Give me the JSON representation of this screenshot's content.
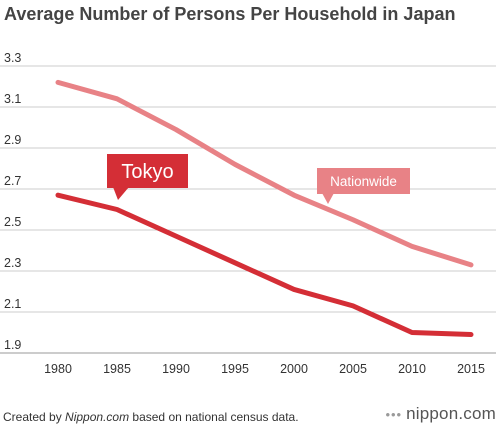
{
  "title": "Average Number of Persons Per Household in Japan",
  "footer": {
    "prefix": "Created by ",
    "source": "Nippon.com",
    "suffix": " based on national census data."
  },
  "brand": {
    "mark": "•••",
    "text": "nippon.com"
  },
  "colors": {
    "tokyo": "#d42e36",
    "nationwide": "#e88286",
    "grid": "#cccccc",
    "label_text": "#ffffff"
  },
  "chart_data": {
    "type": "line",
    "title": "Average Number of Persons Per Household in Japan",
    "x": [
      "1980",
      "1985",
      "1990",
      "1995",
      "2000",
      "2005",
      "2010",
      "2015"
    ],
    "ylim": [
      1.9,
      3.3
    ],
    "yticks": [
      "1.9",
      "2.1",
      "2.3",
      "2.5",
      "2.7",
      "2.9",
      "3.1",
      "3.3"
    ],
    "grid": true,
    "series": [
      {
        "name": "Nationwide",
        "values": [
          3.22,
          3.14,
          2.99,
          2.82,
          2.67,
          2.55,
          2.42,
          2.33
        ]
      },
      {
        "name": "Tokyo",
        "values": [
          2.67,
          2.6,
          2.47,
          2.34,
          2.21,
          2.13,
          2.0,
          1.99
        ]
      }
    ]
  }
}
